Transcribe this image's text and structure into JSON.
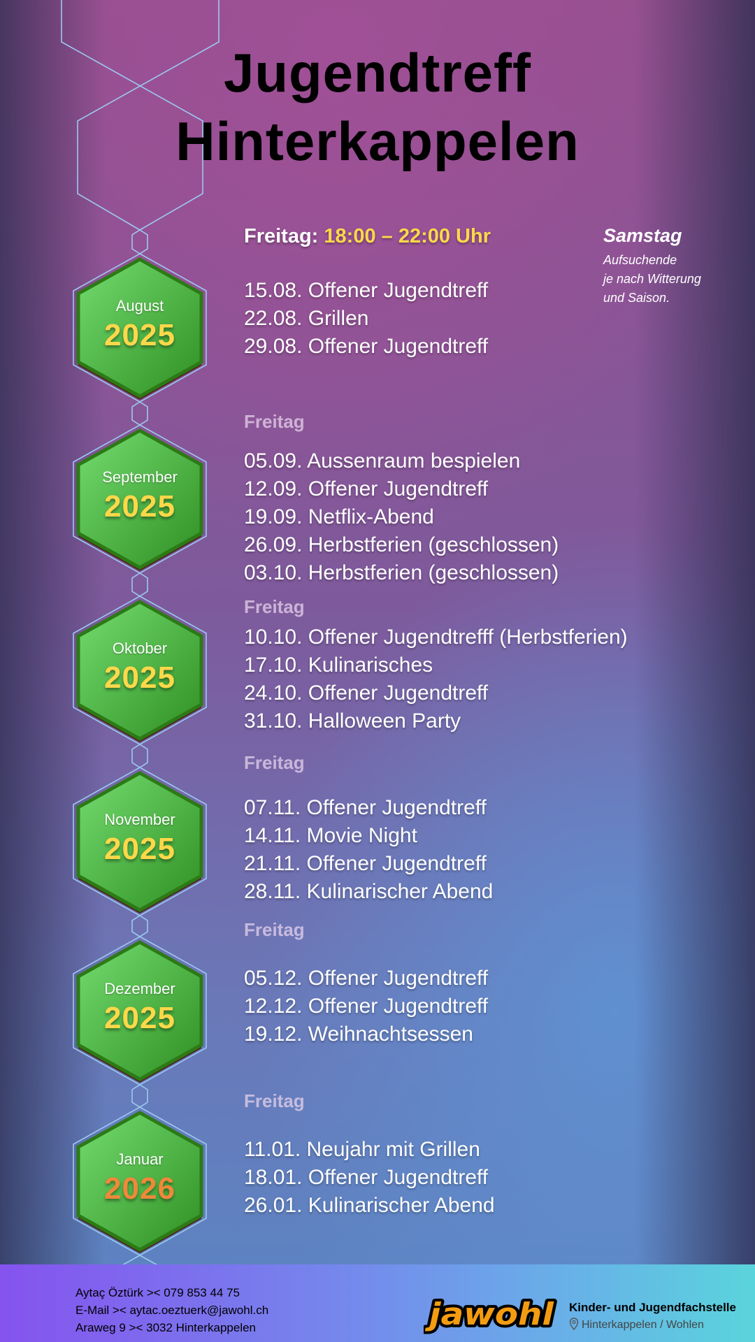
{
  "title": {
    "line1": "Jugendtreff",
    "line2": "Hinterkappelen"
  },
  "friday_header": {
    "label": "Freitag:",
    "hours": "18:00 – 22:00 Uhr"
  },
  "saturday": {
    "title": "Samstag",
    "lines": [
      "Aufsuchende",
      "je nach Witterung",
      "und Saison."
    ]
  },
  "colors": {
    "year": "#ffd84a",
    "year_next": "#f0883a",
    "hex_green": "#4cb848",
    "hours": "#ffd84a"
  },
  "months": [
    {
      "month": "August",
      "year": "2025",
      "subheader": "",
      "items": [
        "15.08. Offener Jugendtreff",
        "22.08. Grillen",
        "29.08. Offener Jugendtreff"
      ]
    },
    {
      "month": "September",
      "year": "2025",
      "subheader": "Freitag",
      "items": [
        "05.09. Aussenraum bespielen",
        "12.09. Offener Jugendtreff",
        "19.09. Netflix-Abend",
        "26.09. Herbstferien (geschlossen)",
        "03.10. Herbstferien (geschlossen)"
      ]
    },
    {
      "month": "Oktober",
      "year": "2025",
      "subheader": "Freitag",
      "items": [
        "10.10. Offener Jugendtrefff (Herbstferien)",
        "17.10. Kulinarisches",
        "24.10. Offener Jugendtreff",
        "31.10. Halloween Party"
      ]
    },
    {
      "month": "November",
      "year": "2025",
      "subheader": "Freitag",
      "items": [
        "07.11. Offener Jugendtreff",
        "14.11. Movie Night",
        "21.11. Offener Jugendtreff",
        "28.11. Kulinarischer Abend"
      ]
    },
    {
      "month": "Dezember",
      "year": "2025",
      "subheader": "Freitag",
      "items": [
        "05.12. Offener Jugendtreff",
        "12.12. Offener Jugendtreff",
        "19.12. Weihnachtsessen"
      ]
    },
    {
      "month": "Januar",
      "year": "2026",
      "subheader": "Freitag",
      "items": [
        "11.01. Neujahr mit Grillen",
        "18.01. Offener Jugendtreff",
        "26.01. Kulinarischer Abend"
      ]
    }
  ],
  "footer": {
    "contact": [
      "Aytaç Öztürk >< 079 853 44 75",
      "E-Mail >< aytac.oeztuerk@jawohl.ch",
      "Araweg 9 >< 3032 Hinterkappelen"
    ],
    "logo_text": "jawohl",
    "org_name": "Kinder- und Jugendfachstelle",
    "org_place": "Hinterkappelen / Wohlen",
    "place_icon": "map-pin-icon"
  }
}
